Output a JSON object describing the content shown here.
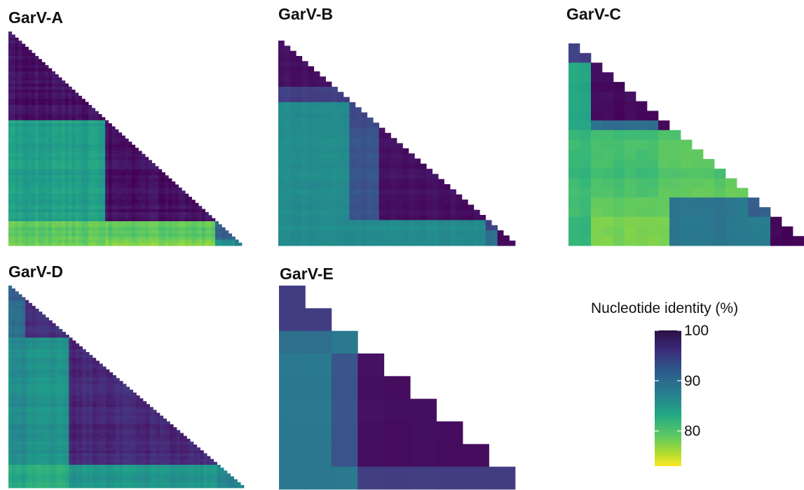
{
  "chart_data": {
    "type": "heatmap",
    "panels": [
      {
        "title": "GarV-A",
        "n": 70,
        "groups": [
          {
            "id": "A1",
            "size": 29,
            "identity": 99
          },
          {
            "id": "A2",
            "size": 33,
            "identity": 99
          },
          {
            "id": "A3",
            "size": 6,
            "identity": 92
          },
          {
            "id": "A4",
            "size": 2,
            "identity": 88
          }
        ],
        "between": [
          [
            "A1",
            "A2",
            85
          ],
          [
            "A1",
            "A3",
            80
          ],
          [
            "A1",
            "A4",
            79
          ],
          [
            "A2",
            "A3",
            80
          ],
          [
            "A2",
            "A4",
            78
          ],
          [
            "A3",
            "A4",
            86
          ]
        ],
        "noise": 1.5
      },
      {
        "title": "GarV-B",
        "n": 40,
        "groups": [
          {
            "id": "B1",
            "size": 9,
            "identity": 99
          },
          {
            "id": "B2",
            "size": 3,
            "identity": 95
          },
          {
            "id": "B3",
            "size": 5,
            "identity": 94
          },
          {
            "id": "B4",
            "size": 18,
            "identity": 99
          },
          {
            "id": "B5",
            "size": 2,
            "identity": 95
          },
          {
            "id": "B6",
            "size": 3,
            "identity": 99
          }
        ],
        "between": [
          [
            "B1",
            "B2",
            95
          ],
          [
            "B1",
            "B3",
            87
          ],
          [
            "B1",
            "B4",
            87
          ],
          [
            "B1",
            "B5",
            87
          ],
          [
            "B1",
            "B6",
            87
          ],
          [
            "B2",
            "B3",
            87
          ],
          [
            "B2",
            "B4",
            87
          ],
          [
            "B2",
            "B5",
            87
          ],
          [
            "B2",
            "B6",
            87
          ],
          [
            "B3",
            "B4",
            93
          ],
          [
            "B3",
            "B5",
            87
          ],
          [
            "B3",
            "B6",
            87
          ],
          [
            "B4",
            "B5",
            87
          ],
          [
            "B4",
            "B6",
            87
          ],
          [
            "B5",
            "B6",
            90
          ]
        ],
        "noise": 0.8
      },
      {
        "title": "GarV-C",
        "n": 21,
        "groups": [
          {
            "id": "C1",
            "size": 2,
            "identity": 95
          },
          {
            "id": "C2",
            "size": 6,
            "identity": 99
          },
          {
            "id": "C3",
            "size": 1,
            "identity": 99
          },
          {
            "id": "C4",
            "size": 7,
            "identity": 80
          },
          {
            "id": "C5",
            "size": 2,
            "identity": 93
          },
          {
            "id": "C6",
            "size": 3,
            "identity": 99
          }
        ],
        "between": [
          [
            "C1",
            "C2",
            84
          ],
          [
            "C1",
            "C3",
            84
          ],
          [
            "C1",
            "C4",
            82
          ],
          [
            "C1",
            "C5",
            82
          ],
          [
            "C1",
            "C6",
            82
          ],
          [
            "C2",
            "C3",
            90
          ],
          [
            "C2",
            "C4",
            81
          ],
          [
            "C2",
            "C5",
            80
          ],
          [
            "C2",
            "C6",
            78
          ],
          [
            "C3",
            "C4",
            80
          ],
          [
            "C3",
            "C5",
            80
          ],
          [
            "C3",
            "C6",
            78
          ],
          [
            "C4",
            "C5",
            90
          ],
          [
            "C4",
            "C6",
            89
          ],
          [
            "C5",
            "C6",
            89
          ]
        ],
        "noise": 1.2
      },
      {
        "title": "GarV-D",
        "n": 70,
        "groups": [
          {
            "id": "D1",
            "size": 5,
            "identity": 92
          },
          {
            "id": "D2",
            "size": 13,
            "identity": 96
          },
          {
            "id": "D3",
            "size": 44,
            "identity": 97
          },
          {
            "id": "D4",
            "size": 8,
            "identity": 88
          }
        ],
        "between": [
          [
            "D1",
            "D2",
            90
          ],
          [
            "D1",
            "D3",
            87
          ],
          [
            "D1",
            "D4",
            84
          ],
          [
            "D2",
            "D3",
            86
          ],
          [
            "D2",
            "D4",
            83
          ],
          [
            "D3",
            "D4",
            86
          ]
        ],
        "noise": 1.5
      },
      {
        "title": "GarV-E",
        "n": 9,
        "groups": [
          {
            "id": "E1",
            "size": 2,
            "identity": 95
          },
          {
            "id": "E2",
            "size": 1,
            "identity": 89
          },
          {
            "id": "E3",
            "size": 5,
            "identity": 99
          },
          {
            "id": "E4",
            "size": 1,
            "identity": 95
          }
        ],
        "between": [
          [
            "E1",
            "E2",
            90
          ],
          [
            "E1",
            "E3",
            89
          ],
          [
            "E1",
            "E4",
            89
          ],
          [
            "E2",
            "E3",
            93
          ],
          [
            "E2",
            "E4",
            89
          ],
          [
            "E3",
            "E4",
            95
          ]
        ],
        "noise": 0.3
      }
    ],
    "colorbar": {
      "title": "Nucleotide identity (%)",
      "min": 73,
      "max": 100,
      "ticks": [
        100,
        90,
        80
      ],
      "colormap": "viridis",
      "reversed": true
    }
  }
}
